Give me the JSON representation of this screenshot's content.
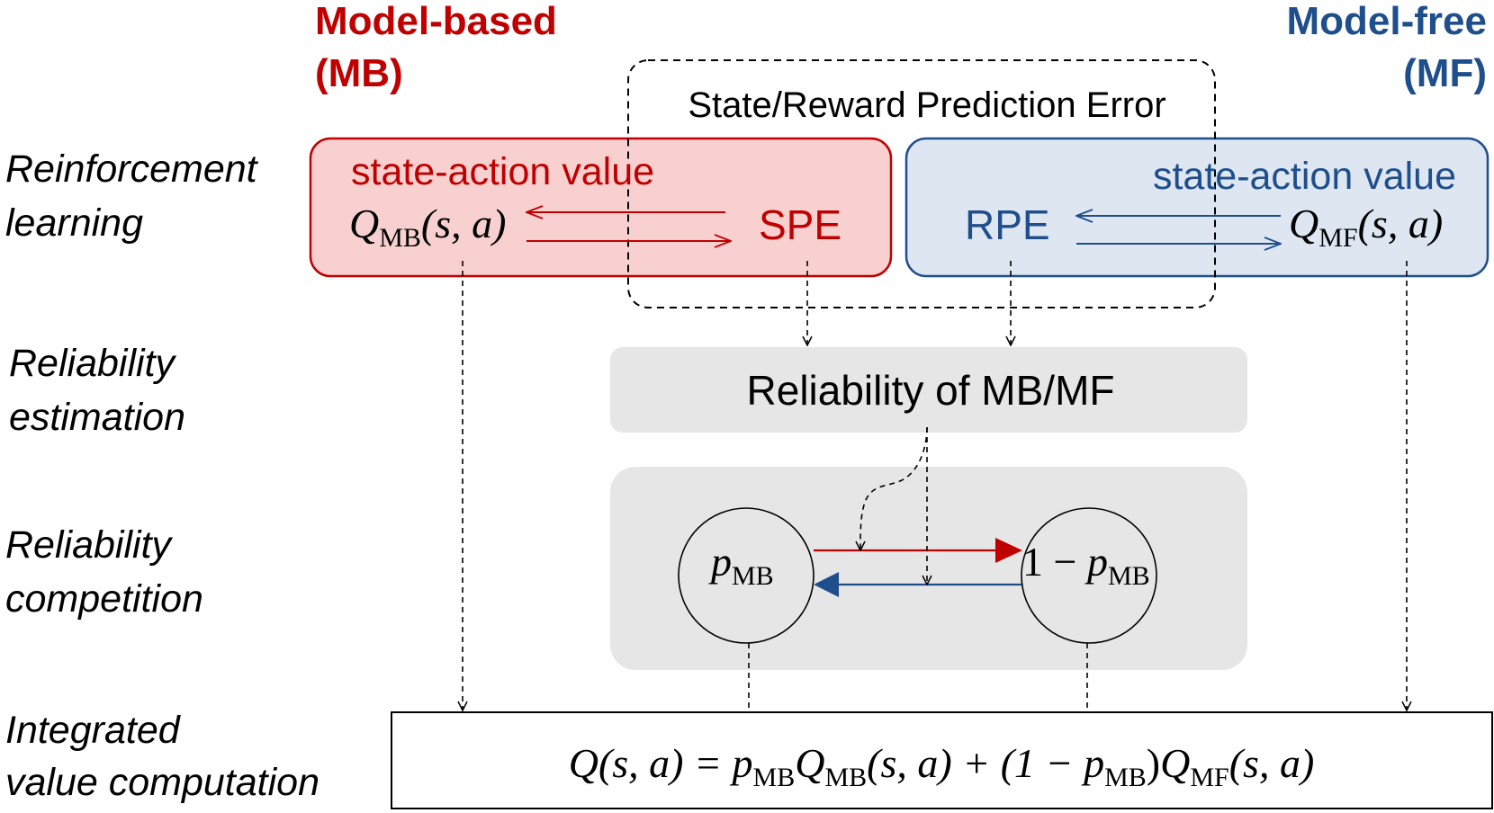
{
  "header": {
    "mb_line1": "Model-based",
    "mb_line2": "(MB)",
    "mf_line1": "Model-free",
    "mf_line2": "(MF)"
  },
  "stages": {
    "rl_line1": "Reinforcement",
    "rl_line2": "learning",
    "re_line1": "Reliability",
    "re_line2": "estimation",
    "rc_line1": "Reliability",
    "rc_line2": "competition",
    "iv_line1": "Integrated",
    "iv_line2": "value computation"
  },
  "prediction_error": {
    "label": "State/Reward Prediction Error"
  },
  "mb_box": {
    "title": "state-action value",
    "q_letter": "Q",
    "q_subscript": "MB",
    "q_args": "(s, a)",
    "error_label": "SPE"
  },
  "mf_box": {
    "title": "state-action value",
    "q_letter": "Q",
    "q_subscript": "MF",
    "q_args": "(s, a)",
    "error_label": "RPE"
  },
  "reliability_box": {
    "label": "Reliability of MB/MF"
  },
  "competition": {
    "left_p": "p",
    "left_sub": "MB",
    "right_prefix": "1 − ",
    "right_p": "p",
    "right_sub": "MB"
  },
  "formula": {
    "lhs": "Q(s, a) = ",
    "t1_p": "p",
    "t1_p_sub": "MB",
    "t1_q": "Q",
    "t1_q_sub": "MB",
    "t1_args": "(s, a) + (1 − ",
    "t2_p": "p",
    "t2_p_sub": "MB",
    "t2_close": ")",
    "t2_q": "Q",
    "t2_q_sub": "MF",
    "t2_args": "(s, a)"
  },
  "colors": {
    "mb_red": "#c00000",
    "mf_blue": "#1f4e8c",
    "mb_fill": "#f8d0d0",
    "mf_fill": "#dde6f1",
    "gray_fill": "#e6e6e6"
  }
}
